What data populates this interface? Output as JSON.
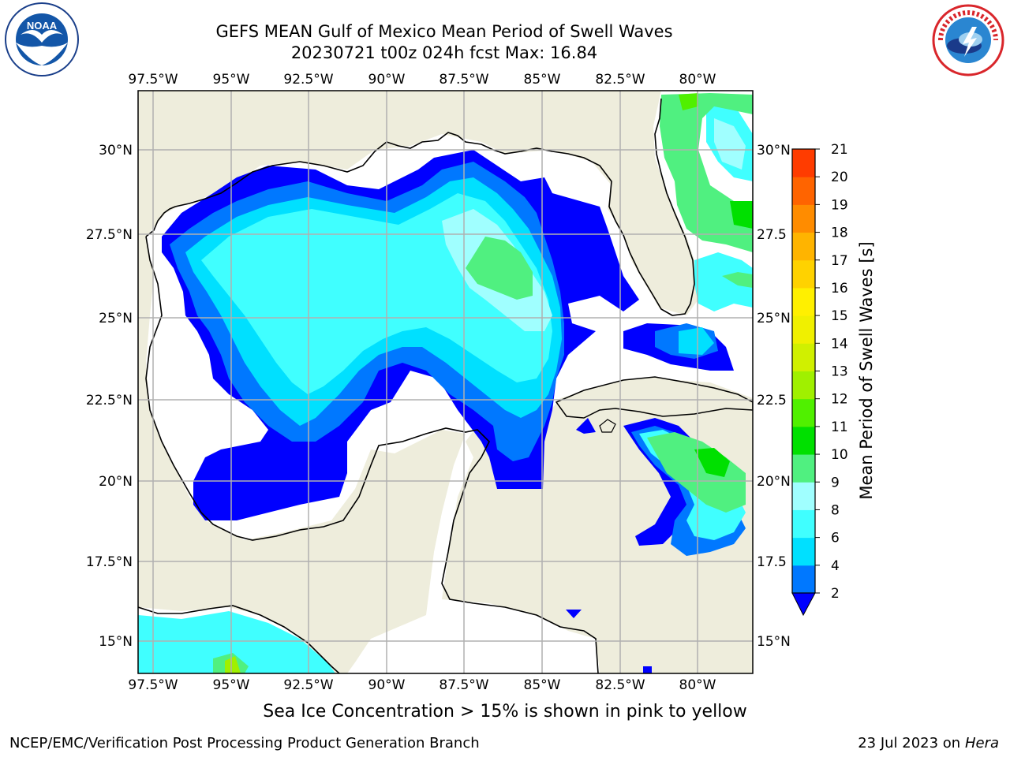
{
  "title": {
    "line1": "GEFS MEAN Gulf of Mexico Mean Period of Swell Waves",
    "line2": "20230721 t00z 024h fcst   Max: 16.84"
  },
  "logos": {
    "left": {
      "name": "noaa-logo",
      "text": "NOAA"
    },
    "right": {
      "name": "national-weather-service-logo"
    }
  },
  "map": {
    "region": "Gulf of Mexico",
    "lon_ticks": [
      "97.5°W",
      "95°W",
      "92.5°W",
      "90°W",
      "87.5°W",
      "85°W",
      "82.5°W",
      "80°W"
    ],
    "lat_ticks_left": [
      "30°N",
      "27.5°N",
      "25°N",
      "22.5°N",
      "20°N",
      "17.5°N",
      "15°N"
    ],
    "lat_ticks_right": [
      "30°N",
      "27.5",
      "25°N",
      "22.5",
      "20°N",
      "17.5",
      "15°N"
    ],
    "land_color": "#eeeddc",
    "grid_color": "#b0b0b0"
  },
  "colorbar": {
    "label": "Mean Period of Swell Waves [s]",
    "ticks": [
      "2",
      "4",
      "6",
      "8",
      "9",
      "10",
      "11",
      "12",
      "13",
      "14",
      "15",
      "16",
      "17",
      "18",
      "19",
      "20",
      "21"
    ],
    "colors": [
      "#0078ff",
      "#00e0ff",
      "#40ffff",
      "#a0ffff",
      "#50f080",
      "#00e000",
      "#50f000",
      "#a0f000",
      "#d0f000",
      "#f0f000",
      "#fff000",
      "#ffd200",
      "#ffb400",
      "#ff8c00",
      "#ff6400",
      "#ff3c00",
      "#ff0000"
    ],
    "under_color": "#0000ff"
  },
  "notes": {
    "ice": "Sea Ice Concentration > 15% is shown in pink to yellow"
  },
  "footer": {
    "left": "NCEP/EMC/Verification Post Processing Product Generation Branch",
    "right_prefix": "23 Jul 2023 on ",
    "right_host": "Hera"
  }
}
